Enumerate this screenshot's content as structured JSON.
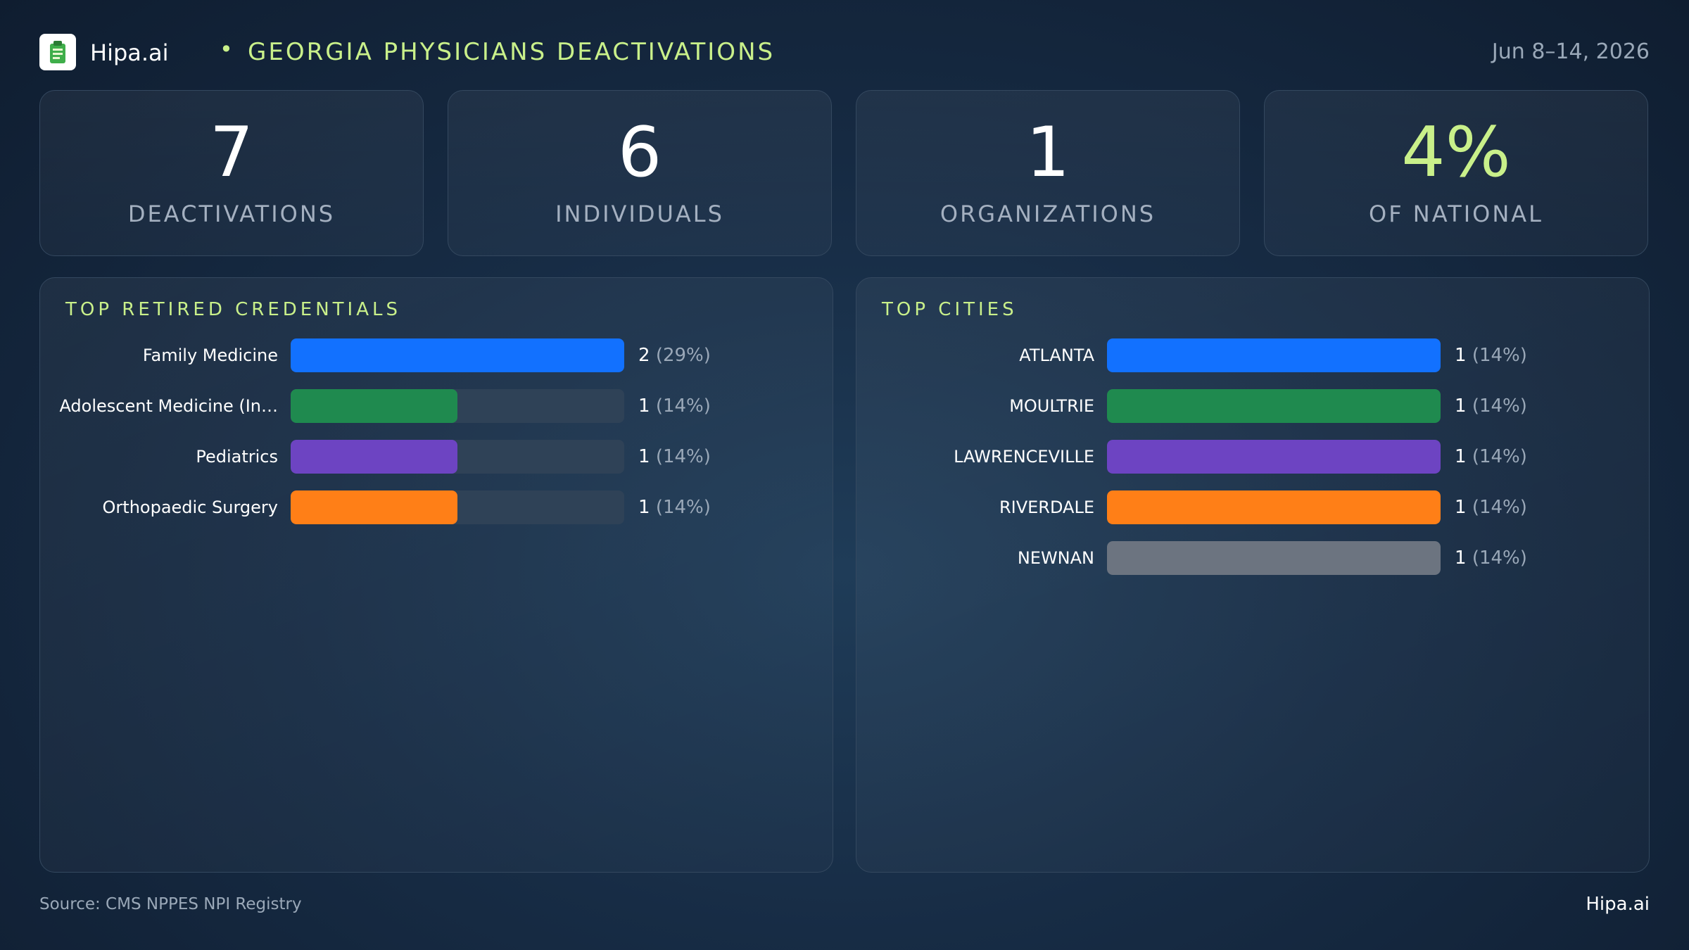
{
  "header": {
    "brand": "Hipa.ai",
    "separator": "•",
    "title": "GEORGIA PHYSICIANS DEACTIVATIONS",
    "date": "Jun 8–14, 2026",
    "logo_icon": "clipboard-logo-icon"
  },
  "stats": [
    {
      "value": "7",
      "label": "DEACTIVATIONS"
    },
    {
      "value": "6",
      "label": "INDIVIDUALS"
    },
    {
      "value": "1",
      "label": "ORGANIZATIONS"
    },
    {
      "value": "4%",
      "label": "OF NATIONAL"
    }
  ],
  "accent_color": "#c9f08a",
  "chart_data": [
    {
      "type": "bar",
      "orientation": "horizontal",
      "title": "TOP RETIRED CREDENTIALS",
      "categories": [
        "Family Medicine",
        "Adolescent Medicine (In…",
        "Pediatrics",
        "Orthopaedic Surgery"
      ],
      "values": [
        2,
        1,
        1,
        1
      ],
      "labels": [
        "(29%)",
        "(14%)",
        "(14%)",
        "(14%)"
      ],
      "colors": [
        "#1271ff",
        "#1f8a4f",
        "#6d44c2",
        "#ff7f17"
      ],
      "xlim": [
        0,
        2
      ]
    },
    {
      "type": "bar",
      "orientation": "horizontal",
      "title": "TOP CITIES",
      "categories": [
        "ATLANTA",
        "MOULTRIE",
        "LAWRENCEVILLE",
        "RIVERDALE",
        "NEWNAN"
      ],
      "values": [
        1,
        1,
        1,
        1,
        1
      ],
      "labels": [
        "(14%)",
        "(14%)",
        "(14%)",
        "(14%)",
        "(14%)"
      ],
      "colors": [
        "#1271ff",
        "#1f8a4f",
        "#6d44c2",
        "#ff7f17",
        "#6c7480"
      ],
      "xlim": [
        0,
        1
      ]
    }
  ],
  "footer": {
    "source": "Source: CMS NPPES NPI Registry",
    "brand": "Hipa.ai"
  }
}
